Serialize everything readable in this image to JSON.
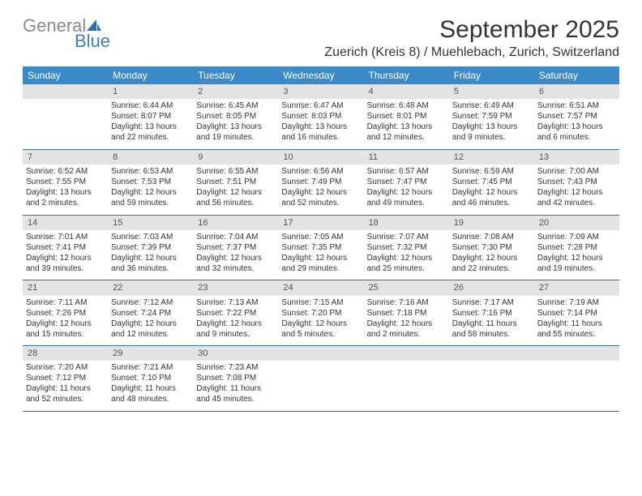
{
  "logo": {
    "word1": "General",
    "word2": "Blue"
  },
  "title": "September 2025",
  "location": "Zuerich (Kreis 8) / Muehlebach, Zurich, Switzerland",
  "colors": {
    "header_bg": "#3a89c9",
    "header_text": "#ffffff",
    "daynum_bg": "#e3e3e3",
    "text": "#333333",
    "border": "#3a6fa0",
    "logo_gray": "#8a8a8a",
    "logo_blue": "#3a7fc4"
  },
  "weekdays": [
    "Sunday",
    "Monday",
    "Tuesday",
    "Wednesday",
    "Thursday",
    "Friday",
    "Saturday"
  ],
  "weeks": [
    {
      "nums": [
        "",
        "1",
        "2",
        "3",
        "4",
        "5",
        "6"
      ],
      "cells": [
        {
          "sunrise": "",
          "sunset": "",
          "daylight": ""
        },
        {
          "sunrise": "Sunrise: 6:44 AM",
          "sunset": "Sunset: 8:07 PM",
          "daylight": "Daylight: 13 hours and 22 minutes."
        },
        {
          "sunrise": "Sunrise: 6:45 AM",
          "sunset": "Sunset: 8:05 PM",
          "daylight": "Daylight: 13 hours and 19 minutes."
        },
        {
          "sunrise": "Sunrise: 6:47 AM",
          "sunset": "Sunset: 8:03 PM",
          "daylight": "Daylight: 13 hours and 16 minutes."
        },
        {
          "sunrise": "Sunrise: 6:48 AM",
          "sunset": "Sunset: 8:01 PM",
          "daylight": "Daylight: 13 hours and 12 minutes."
        },
        {
          "sunrise": "Sunrise: 6:49 AM",
          "sunset": "Sunset: 7:59 PM",
          "daylight": "Daylight: 13 hours and 9 minutes."
        },
        {
          "sunrise": "Sunrise: 6:51 AM",
          "sunset": "Sunset: 7:57 PM",
          "daylight": "Daylight: 13 hours and 6 minutes."
        }
      ]
    },
    {
      "nums": [
        "7",
        "8",
        "9",
        "10",
        "11",
        "12",
        "13"
      ],
      "cells": [
        {
          "sunrise": "Sunrise: 6:52 AM",
          "sunset": "Sunset: 7:55 PM",
          "daylight": "Daylight: 13 hours and 2 minutes."
        },
        {
          "sunrise": "Sunrise: 6:53 AM",
          "sunset": "Sunset: 7:53 PM",
          "daylight": "Daylight: 12 hours and 59 minutes."
        },
        {
          "sunrise": "Sunrise: 6:55 AM",
          "sunset": "Sunset: 7:51 PM",
          "daylight": "Daylight: 12 hours and 56 minutes."
        },
        {
          "sunrise": "Sunrise: 6:56 AM",
          "sunset": "Sunset: 7:49 PM",
          "daylight": "Daylight: 12 hours and 52 minutes."
        },
        {
          "sunrise": "Sunrise: 6:57 AM",
          "sunset": "Sunset: 7:47 PM",
          "daylight": "Daylight: 12 hours and 49 minutes."
        },
        {
          "sunrise": "Sunrise: 6:59 AM",
          "sunset": "Sunset: 7:45 PM",
          "daylight": "Daylight: 12 hours and 46 minutes."
        },
        {
          "sunrise": "Sunrise: 7:00 AM",
          "sunset": "Sunset: 7:43 PM",
          "daylight": "Daylight: 12 hours and 42 minutes."
        }
      ]
    },
    {
      "nums": [
        "14",
        "15",
        "16",
        "17",
        "18",
        "19",
        "20"
      ],
      "cells": [
        {
          "sunrise": "Sunrise: 7:01 AM",
          "sunset": "Sunset: 7:41 PM",
          "daylight": "Daylight: 12 hours and 39 minutes."
        },
        {
          "sunrise": "Sunrise: 7:03 AM",
          "sunset": "Sunset: 7:39 PM",
          "daylight": "Daylight: 12 hours and 36 minutes."
        },
        {
          "sunrise": "Sunrise: 7:04 AM",
          "sunset": "Sunset: 7:37 PM",
          "daylight": "Daylight: 12 hours and 32 minutes."
        },
        {
          "sunrise": "Sunrise: 7:05 AM",
          "sunset": "Sunset: 7:35 PM",
          "daylight": "Daylight: 12 hours and 29 minutes."
        },
        {
          "sunrise": "Sunrise: 7:07 AM",
          "sunset": "Sunset: 7:32 PM",
          "daylight": "Daylight: 12 hours and 25 minutes."
        },
        {
          "sunrise": "Sunrise: 7:08 AM",
          "sunset": "Sunset: 7:30 PM",
          "daylight": "Daylight: 12 hours and 22 minutes."
        },
        {
          "sunrise": "Sunrise: 7:09 AM",
          "sunset": "Sunset: 7:28 PM",
          "daylight": "Daylight: 12 hours and 19 minutes."
        }
      ]
    },
    {
      "nums": [
        "21",
        "22",
        "23",
        "24",
        "25",
        "26",
        "27"
      ],
      "cells": [
        {
          "sunrise": "Sunrise: 7:11 AM",
          "sunset": "Sunset: 7:26 PM",
          "daylight": "Daylight: 12 hours and 15 minutes."
        },
        {
          "sunrise": "Sunrise: 7:12 AM",
          "sunset": "Sunset: 7:24 PM",
          "daylight": "Daylight: 12 hours and 12 minutes."
        },
        {
          "sunrise": "Sunrise: 7:13 AM",
          "sunset": "Sunset: 7:22 PM",
          "daylight": "Daylight: 12 hours and 9 minutes."
        },
        {
          "sunrise": "Sunrise: 7:15 AM",
          "sunset": "Sunset: 7:20 PM",
          "daylight": "Daylight: 12 hours and 5 minutes."
        },
        {
          "sunrise": "Sunrise: 7:16 AM",
          "sunset": "Sunset: 7:18 PM",
          "daylight": "Daylight: 12 hours and 2 minutes."
        },
        {
          "sunrise": "Sunrise: 7:17 AM",
          "sunset": "Sunset: 7:16 PM",
          "daylight": "Daylight: 11 hours and 58 minutes."
        },
        {
          "sunrise": "Sunrise: 7:19 AM",
          "sunset": "Sunset: 7:14 PM",
          "daylight": "Daylight: 11 hours and 55 minutes."
        }
      ]
    },
    {
      "nums": [
        "28",
        "29",
        "30",
        "",
        "",
        "",
        ""
      ],
      "cells": [
        {
          "sunrise": "Sunrise: 7:20 AM",
          "sunset": "Sunset: 7:12 PM",
          "daylight": "Daylight: 11 hours and 52 minutes."
        },
        {
          "sunrise": "Sunrise: 7:21 AM",
          "sunset": "Sunset: 7:10 PM",
          "daylight": "Daylight: 11 hours and 48 minutes."
        },
        {
          "sunrise": "Sunrise: 7:23 AM",
          "sunset": "Sunset: 7:08 PM",
          "daylight": "Daylight: 11 hours and 45 minutes."
        },
        {
          "sunrise": "",
          "sunset": "",
          "daylight": ""
        },
        {
          "sunrise": "",
          "sunset": "",
          "daylight": ""
        },
        {
          "sunrise": "",
          "sunset": "",
          "daylight": ""
        },
        {
          "sunrise": "",
          "sunset": "",
          "daylight": ""
        }
      ]
    }
  ]
}
